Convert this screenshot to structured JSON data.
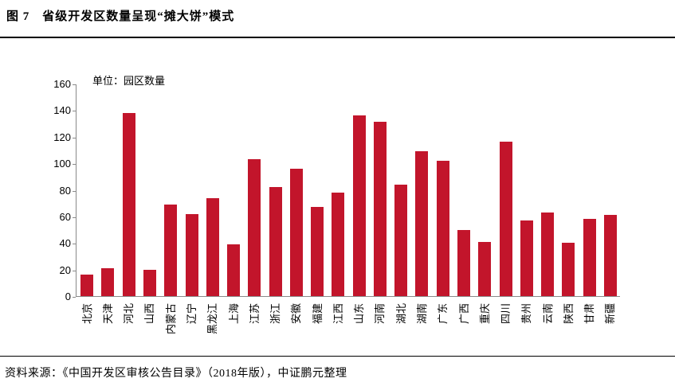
{
  "figure": {
    "title": "图 7　省级开发区数量呈现“摊大饼”模式",
    "source": "资料来源：《中国开发区审核公告目录》（2018年版），中证鹏元整理"
  },
  "chart_data": {
    "type": "bar",
    "title": "省级开发区数量呈现“摊大饼”模式",
    "unit_label": "单位：园区数量",
    "categories": [
      "北京",
      "天津",
      "河北",
      "山西",
      "内蒙古",
      "辽宁",
      "黑龙江",
      "上海",
      "江苏",
      "浙江",
      "安徽",
      "福建",
      "江西",
      "山东",
      "河南",
      "湖北",
      "湖南",
      "广东",
      "广西",
      "重庆",
      "四川",
      "贵州",
      "云南",
      "陕西",
      "甘肃",
      "新疆"
    ],
    "values": [
      16,
      21,
      138,
      20,
      69,
      62,
      74,
      39,
      103,
      82,
      96,
      67,
      78,
      136,
      131,
      84,
      109,
      102,
      50,
      41,
      116,
      57,
      63,
      40,
      58,
      61
    ],
    "xlabel": "",
    "ylabel": "",
    "ylim": [
      0,
      160
    ],
    "y_ticks": [
      0,
      20,
      40,
      60,
      80,
      100,
      120,
      140,
      160
    ],
    "grid": false,
    "legend": false,
    "bar_color": "#c2152b",
    "axis_color": "#8a8a8a"
  }
}
